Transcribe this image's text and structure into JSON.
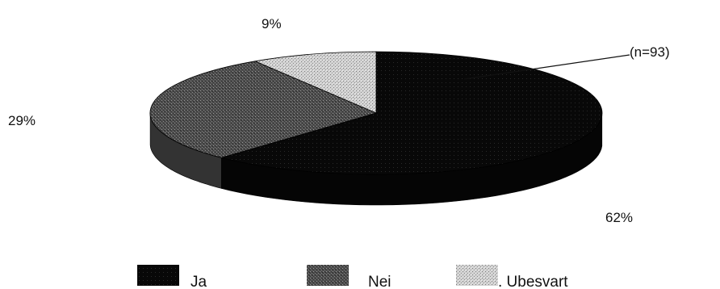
{
  "chart_data": {
    "type": "pie",
    "style": "3d",
    "title": "",
    "annotation": "(n=93)",
    "slices": [
      {
        "label": "Ja",
        "value": 62,
        "value_label": "62%",
        "legend": "Ja",
        "color": "#0a0a0a"
      },
      {
        "label": "Nei",
        "value": 29,
        "value_label": "29%",
        "legend": "Nei",
        "color": "#555555"
      },
      {
        "label": "Ubesvart",
        "value": 9,
        "value_label": "9%",
        "legend": ". Ubesvart",
        "color": "#c4c4c4"
      }
    ],
    "legend_position": "bottom"
  }
}
